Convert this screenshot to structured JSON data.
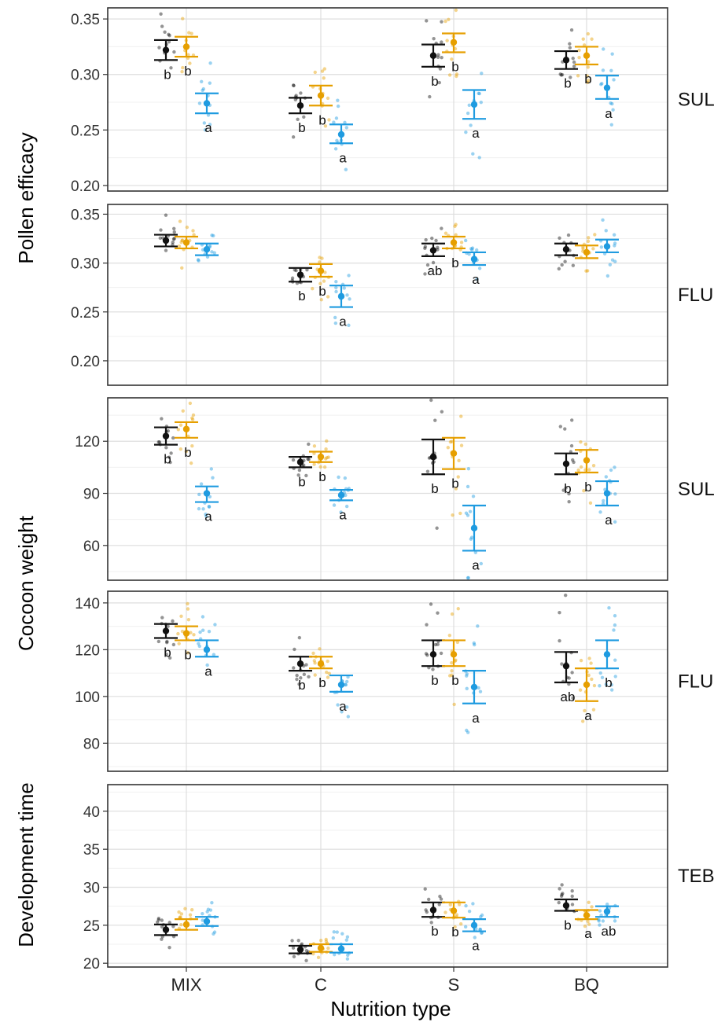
{
  "chart_data": {
    "type": "scatter",
    "categories": [
      "MIX",
      "C",
      "S",
      "BQ"
    ],
    "xlabel": "Nutrition type",
    "series_colors": [
      "#111111",
      "#e69f00",
      "#1f9be0"
    ],
    "ylabels": [
      "Pollen efficacy",
      "Cocoon weight",
      "Development time"
    ],
    "panels": [
      {
        "strip": "SUL",
        "group": "Pollen efficacy",
        "ylim": [
          0.195,
          0.36
        ],
        "ticks": [
          0.2,
          0.25,
          0.3,
          0.35
        ],
        "tick_labels": [
          "0.20",
          "0.25",
          "0.30",
          "0.35"
        ],
        "groups": [
          [
            {
              "mean": 0.322,
              "lo": 0.313,
              "hi": 0.331
            },
            {
              "mean": 0.325,
              "lo": 0.316,
              "hi": 0.334
            },
            {
              "mean": 0.274,
              "lo": 0.265,
              "hi": 0.283
            }
          ],
          [
            {
              "mean": 0.272,
              "lo": 0.265,
              "hi": 0.279
            },
            {
              "mean": 0.281,
              "lo": 0.272,
              "hi": 0.29
            },
            {
              "mean": 0.246,
              "lo": 0.238,
              "hi": 0.255
            }
          ],
          [
            {
              "mean": 0.317,
              "lo": 0.307,
              "hi": 0.327
            },
            {
              "mean": 0.329,
              "lo": 0.32,
              "hi": 0.337
            },
            {
              "mean": 0.273,
              "lo": 0.26,
              "hi": 0.286
            }
          ],
          [
            {
              "mean": 0.313,
              "lo": 0.305,
              "hi": 0.321
            },
            {
              "mean": 0.317,
              "lo": 0.309,
              "hi": 0.325
            },
            {
              "mean": 0.288,
              "lo": 0.278,
              "hi": 0.299
            }
          ]
        ],
        "letters": [
          [
            "b",
            "b",
            "a"
          ],
          [
            "b",
            "b",
            "a"
          ],
          [
            "b",
            "b",
            "a"
          ],
          [
            "b",
            "b",
            "a"
          ]
        ]
      },
      {
        "strip": "FLU",
        "group": "Pollen efficacy",
        "ylim": [
          0.175,
          0.36
        ],
        "ticks": [
          0.2,
          0.25,
          0.3,
          0.35
        ],
        "tick_labels": [
          "0.20",
          "0.25",
          "0.30",
          "0.35"
        ],
        "groups": [
          [
            {
              "mean": 0.323,
              "lo": 0.317,
              "hi": 0.329
            },
            {
              "mean": 0.321,
              "lo": 0.315,
              "hi": 0.327
            },
            {
              "mean": 0.314,
              "lo": 0.308,
              "hi": 0.32
            }
          ],
          [
            {
              "mean": 0.288,
              "lo": 0.281,
              "hi": 0.295
            },
            {
              "mean": 0.292,
              "lo": 0.286,
              "hi": 0.299
            },
            {
              "mean": 0.266,
              "lo": 0.255,
              "hi": 0.277
            }
          ],
          [
            {
              "mean": 0.313,
              "lo": 0.307,
              "hi": 0.32
            },
            {
              "mean": 0.321,
              "lo": 0.315,
              "hi": 0.327
            },
            {
              "mean": 0.304,
              "lo": 0.298,
              "hi": 0.311
            }
          ],
          [
            {
              "mean": 0.314,
              "lo": 0.308,
              "hi": 0.32
            },
            {
              "mean": 0.311,
              "lo": 0.305,
              "hi": 0.318
            },
            {
              "mean": 0.317,
              "lo": 0.311,
              "hi": 0.324
            }
          ]
        ],
        "letters": [
          [
            "",
            "",
            ""
          ],
          [
            "b",
            "b",
            "a"
          ],
          [
            "ab",
            "b",
            "a"
          ],
          [
            "",
            "",
            ""
          ]
        ]
      },
      {
        "strip": "SUL",
        "group": "Cocoon weight",
        "ylim": [
          40,
          145
        ],
        "ticks": [
          60,
          90,
          120
        ],
        "tick_labels": [
          "60",
          "90",
          "120"
        ],
        "groups": [
          [
            {
              "mean": 123,
              "lo": 118,
              "hi": 128
            },
            {
              "mean": 127,
              "lo": 122,
              "hi": 131
            },
            {
              "mean": 90,
              "lo": 85,
              "hi": 94
            }
          ],
          [
            {
              "mean": 108,
              "lo": 105,
              "hi": 111
            },
            {
              "mean": 111,
              "lo": 108,
              "hi": 114
            },
            {
              "mean": 89,
              "lo": 86,
              "hi": 92
            }
          ],
          [
            {
              "mean": 111,
              "lo": 101,
              "hi": 121
            },
            {
              "mean": 113,
              "lo": 104,
              "hi": 122
            },
            {
              "mean": 70,
              "lo": 57,
              "hi": 83
            }
          ],
          [
            {
              "mean": 107,
              "lo": 101,
              "hi": 113
            },
            {
              "mean": 109,
              "lo": 102,
              "hi": 115
            },
            {
              "mean": 90,
              "lo": 83,
              "hi": 97
            }
          ]
        ],
        "letters": [
          [
            "b",
            "b",
            "a"
          ],
          [
            "b",
            "b",
            "a"
          ],
          [
            "b",
            "b",
            "a"
          ],
          [
            "b",
            "b",
            "a"
          ]
        ]
      },
      {
        "strip": "FLU",
        "group": "Cocoon weight",
        "ylim": [
          68,
          145
        ],
        "ticks": [
          80,
          100,
          120,
          140
        ],
        "tick_labels": [
          "80",
          "100",
          "120",
          "140"
        ],
        "groups": [
          [
            {
              "mean": 128,
              "lo": 125,
              "hi": 131
            },
            {
              "mean": 127,
              "lo": 124,
              "hi": 130
            },
            {
              "mean": 120,
              "lo": 117,
              "hi": 124
            }
          ],
          [
            {
              "mean": 114,
              "lo": 111,
              "hi": 117
            },
            {
              "mean": 114,
              "lo": 112,
              "hi": 117
            },
            {
              "mean": 105,
              "lo": 102,
              "hi": 109
            }
          ],
          [
            {
              "mean": 118,
              "lo": 113,
              "hi": 124
            },
            {
              "mean": 118,
              "lo": 113,
              "hi": 124
            },
            {
              "mean": 104,
              "lo": 97,
              "hi": 111
            }
          ],
          [
            {
              "mean": 113,
              "lo": 106,
              "hi": 119
            },
            {
              "mean": 105,
              "lo": 98,
              "hi": 112
            },
            {
              "mean": 118,
              "lo": 112,
              "hi": 124
            }
          ]
        ],
        "letters": [
          [
            "b",
            "b",
            "a"
          ],
          [
            "b",
            "b",
            "a"
          ],
          [
            "b",
            "b",
            "a"
          ],
          [
            "ab",
            "a",
            "b"
          ]
        ]
      },
      {
        "strip": "TEB",
        "group": "Development time",
        "ylim": [
          19.5,
          43.5
        ],
        "ticks": [
          20,
          25,
          30,
          35,
          40
        ],
        "tick_labels": [
          "20",
          "25",
          "30",
          "35",
          "40"
        ],
        "groups": [
          [
            {
              "mean": 24.4,
              "lo": 23.7,
              "hi": 25.1
            },
            {
              "mean": 25.1,
              "lo": 24.4,
              "hi": 25.8
            },
            {
              "mean": 25.5,
              "lo": 24.9,
              "hi": 26.1
            }
          ],
          [
            {
              "mean": 21.8,
              "lo": 21.3,
              "hi": 22.3
            },
            {
              "mean": 22.0,
              "lo": 21.5,
              "hi": 22.5
            },
            {
              "mean": 21.9,
              "lo": 21.4,
              "hi": 22.5
            }
          ],
          [
            {
              "mean": 27.0,
              "lo": 26.1,
              "hi": 28.0
            },
            {
              "mean": 26.9,
              "lo": 26.0,
              "hi": 28.0
            },
            {
              "mean": 25.0,
              "lo": 24.2,
              "hi": 25.8
            }
          ],
          [
            {
              "mean": 27.6,
              "lo": 26.9,
              "hi": 28.4
            },
            {
              "mean": 26.3,
              "lo": 25.8,
              "hi": 27.0
            },
            {
              "mean": 26.8,
              "lo": 26.1,
              "hi": 27.5
            }
          ]
        ],
        "letters": [
          [
            "",
            "",
            ""
          ],
          [
            "",
            "",
            ""
          ],
          [
            "b",
            "b",
            "a"
          ],
          [
            "b",
            "a",
            "ab"
          ]
        ]
      }
    ]
  }
}
